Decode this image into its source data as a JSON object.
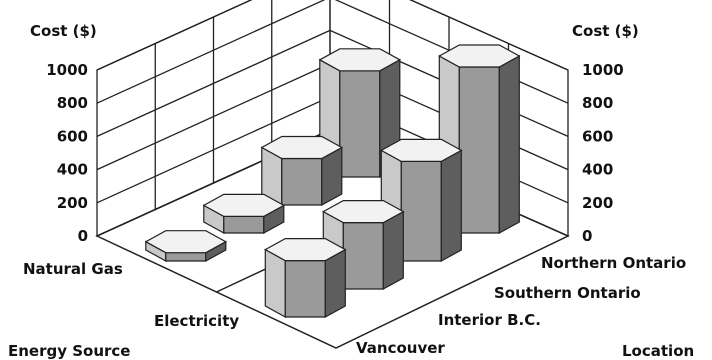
{
  "chart_data": {
    "type": "bar",
    "style": "3d-hexagonal-prism",
    "z_axis_label": "Cost ($)",
    "z_ticks": [
      0,
      200,
      400,
      600,
      800,
      1000
    ],
    "zlim": [
      0,
      1000
    ],
    "x_axis_label": "Location",
    "x_categories": [
      "Vancouver",
      "Interior B.C.",
      "Southern Ontario",
      "Northern Ontario"
    ],
    "y_axis_label": "Energy Source",
    "y_categories": [
      "Natural Gas",
      "Electricity"
    ],
    "series": [
      {
        "name": "Natural Gas",
        "values": [
          50,
          100,
          280,
          640
        ]
      },
      {
        "name": "Electricity",
        "values": [
          340,
          400,
          600,
          1000
        ]
      }
    ],
    "grid": true
  }
}
